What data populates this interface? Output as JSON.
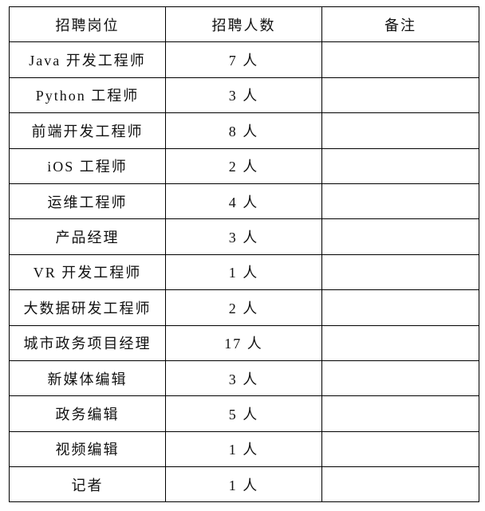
{
  "table": {
    "headers": [
      "招聘岗位",
      "招聘人数",
      "备注"
    ],
    "rows": [
      {
        "position": "Java 开发工程师",
        "count": "7 人",
        "note": ""
      },
      {
        "position": "Python 工程师",
        "count": "3 人",
        "note": ""
      },
      {
        "position": "前端开发工程师",
        "count": "8 人",
        "note": ""
      },
      {
        "position": "iOS 工程师",
        "count": "2 人",
        "note": ""
      },
      {
        "position": "运维工程师",
        "count": "4 人",
        "note": ""
      },
      {
        "position": "产品经理",
        "count": "3 人",
        "note": ""
      },
      {
        "position": "VR 开发工程师",
        "count": "1 人",
        "note": ""
      },
      {
        "position": "大数据研发工程师",
        "count": "2 人",
        "note": ""
      },
      {
        "position": "城市政务项目经理",
        "count": "17 人",
        "note": ""
      },
      {
        "position": "新媒体编辑",
        "count": "3 人",
        "note": ""
      },
      {
        "position": "政务编辑",
        "count": "5 人",
        "note": ""
      },
      {
        "position": "视频编辑",
        "count": "1 人",
        "note": ""
      },
      {
        "position": "记者",
        "count": "1 人",
        "note": ""
      }
    ]
  }
}
